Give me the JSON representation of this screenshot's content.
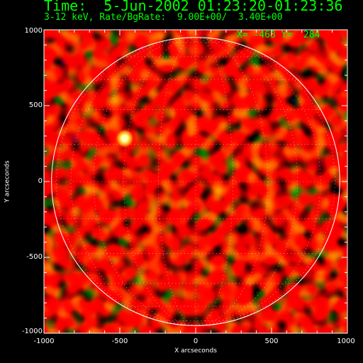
{
  "header": {
    "time_label": "Time:  5-Jun-2002 01:23:20-01:23:36",
    "energy_rate_label": "3-12 keV, Rate/BgRate:  9.00E+00/  3.40E+00",
    "cursor_readout": "X= -468 Y=  284"
  },
  "axes": {
    "x_label": "X arcseconds",
    "y_label": "Y arcseconds",
    "x_range": [
      -1000,
      1000
    ],
    "y_range": [
      -1000,
      1000
    ],
    "x_ticks": [
      "-1000",
      "-500",
      "0",
      "500",
      "1000"
    ],
    "y_ticks": [
      "1000",
      "500",
      "0",
      "-500",
      "-1000"
    ]
  },
  "image": {
    "colormap": "red-temperature with purple negatives",
    "solar_limb_radius_arcsec": 950,
    "bright_source": {
      "x": -468,
      "y": 284
    },
    "grid_spacing_deg": 15
  },
  "colors": {
    "text": "#00ff00",
    "axis": "#ffffff",
    "limb": "#ffffff",
    "background": "#000000"
  }
}
